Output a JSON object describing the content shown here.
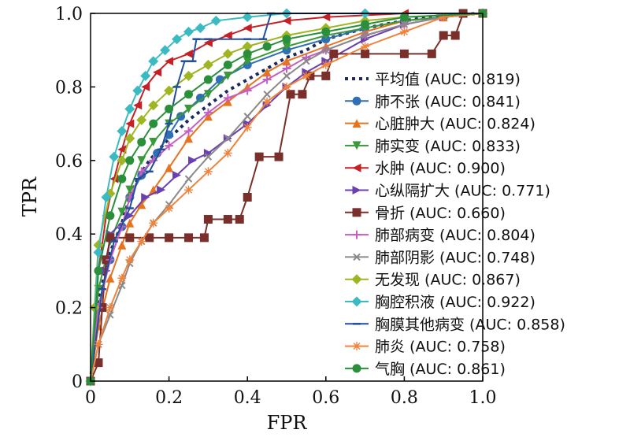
{
  "chart_data": {
    "type": "line",
    "title": "",
    "xlabel": "FPR",
    "ylabel": "TPR",
    "xlim": [
      0,
      1
    ],
    "ylim": [
      0,
      1
    ],
    "x_ticks": [
      "0",
      "0.2",
      "0.4",
      "0.6",
      "0.8",
      "1.0"
    ],
    "y_ticks": [
      "0",
      "0.2",
      "0.4",
      "0.6",
      "0.8",
      "1.0"
    ],
    "grid": false,
    "legend_position": "right",
    "series": [
      {
        "name": "平均值 (AUC: 0.819)",
        "color": "#1b2a5c",
        "marker": "none",
        "dash": true,
        "points": [
          [
            0,
            0
          ],
          [
            0.02,
            0.22
          ],
          [
            0.05,
            0.35
          ],
          [
            0.08,
            0.43
          ],
          [
            0.1,
            0.5
          ],
          [
            0.12,
            0.55
          ],
          [
            0.15,
            0.6
          ],
          [
            0.2,
            0.66
          ],
          [
            0.25,
            0.71
          ],
          [
            0.3,
            0.75
          ],
          [
            0.35,
            0.79
          ],
          [
            0.4,
            0.82
          ],
          [
            0.45,
            0.85
          ],
          [
            0.5,
            0.88
          ],
          [
            0.55,
            0.9
          ],
          [
            0.6,
            0.93
          ],
          [
            0.7,
            0.96
          ],
          [
            0.8,
            0.98
          ],
          [
            0.9,
            0.995
          ],
          [
            1,
            1
          ]
        ]
      },
      {
        "name": "肺不张 (AUC: 0.841)",
        "color": "#2e6fb5",
        "marker": "circle",
        "points": [
          [
            0,
            0
          ],
          [
            0.02,
            0.2
          ],
          [
            0.05,
            0.33
          ],
          [
            0.08,
            0.42
          ],
          [
            0.1,
            0.5
          ],
          [
            0.13,
            0.56
          ],
          [
            0.17,
            0.62
          ],
          [
            0.2,
            0.67
          ],
          [
            0.23,
            0.72
          ],
          [
            0.28,
            0.77
          ],
          [
            0.33,
            0.82
          ],
          [
            0.4,
            0.86
          ],
          [
            0.5,
            0.9
          ],
          [
            0.6,
            0.93
          ],
          [
            0.7,
            0.96
          ],
          [
            0.8,
            0.98
          ],
          [
            0.9,
            0.99
          ],
          [
            1,
            1
          ]
        ]
      },
      {
        "name": "心脏肿大 (AUC: 0.824)",
        "color": "#e8731f",
        "marker": "triangle-up",
        "points": [
          [
            0,
            0
          ],
          [
            0.02,
            0.15
          ],
          [
            0.05,
            0.28
          ],
          [
            0.08,
            0.37
          ],
          [
            0.1,
            0.43
          ],
          [
            0.13,
            0.48
          ],
          [
            0.16,
            0.52
          ],
          [
            0.2,
            0.58
          ],
          [
            0.25,
            0.66
          ],
          [
            0.3,
            0.72
          ],
          [
            0.35,
            0.76
          ],
          [
            0.4,
            0.8
          ],
          [
            0.45,
            0.84
          ],
          [
            0.5,
            0.87
          ],
          [
            0.6,
            0.91
          ],
          [
            0.7,
            0.95
          ],
          [
            0.8,
            0.98
          ],
          [
            0.9,
            0.99
          ],
          [
            1,
            1
          ]
        ]
      },
      {
        "name": "肺实变 (AUC: 0.833)",
        "color": "#3a9a3a",
        "marker": "triangle-down",
        "points": [
          [
            0,
            0
          ],
          [
            0.02,
            0.25
          ],
          [
            0.05,
            0.38
          ],
          [
            0.08,
            0.46
          ],
          [
            0.1,
            0.52
          ],
          [
            0.13,
            0.6
          ],
          [
            0.16,
            0.65
          ],
          [
            0.2,
            0.7
          ],
          [
            0.25,
            0.74
          ],
          [
            0.3,
            0.78
          ],
          [
            0.35,
            0.83
          ],
          [
            0.4,
            0.87
          ],
          [
            0.5,
            0.91
          ],
          [
            0.6,
            0.94
          ],
          [
            0.7,
            0.96
          ],
          [
            0.8,
            0.98
          ],
          [
            0.9,
            0.99
          ],
          [
            1,
            1
          ]
        ]
      },
      {
        "name": "水肿 (AUC: 0.900)",
        "color": "#c42026",
        "marker": "triangle-left",
        "points": [
          [
            0,
            0
          ],
          [
            0.02,
            0.3
          ],
          [
            0.04,
            0.45
          ],
          [
            0.06,
            0.55
          ],
          [
            0.08,
            0.63
          ],
          [
            0.1,
            0.7
          ],
          [
            0.12,
            0.75
          ],
          [
            0.14,
            0.8
          ],
          [
            0.17,
            0.84
          ],
          [
            0.2,
            0.87
          ],
          [
            0.25,
            0.89
          ],
          [
            0.3,
            0.92
          ],
          [
            0.35,
            0.94
          ],
          [
            0.4,
            0.96
          ],
          [
            0.5,
            0.98
          ],
          [
            0.6,
            0.99
          ],
          [
            0.8,
            1.0
          ],
          [
            1,
            1
          ]
        ]
      },
      {
        "name": "心纵隔扩大 (AUC: 0.771)",
        "color": "#6a3fb0",
        "marker": "triangle-right",
        "points": [
          [
            0,
            0
          ],
          [
            0.02,
            0.2
          ],
          [
            0.04,
            0.3
          ],
          [
            0.05,
            0.4
          ],
          [
            0.1,
            0.45
          ],
          [
            0.14,
            0.5
          ],
          [
            0.18,
            0.52
          ],
          [
            0.22,
            0.56
          ],
          [
            0.26,
            0.6
          ],
          [
            0.3,
            0.62
          ],
          [
            0.35,
            0.66
          ],
          [
            0.4,
            0.7
          ],
          [
            0.45,
            0.75
          ],
          [
            0.5,
            0.8
          ],
          [
            0.55,
            0.84
          ],
          [
            0.6,
            0.87
          ],
          [
            0.7,
            0.93
          ],
          [
            0.8,
            0.97
          ],
          [
            0.9,
            0.99
          ],
          [
            1,
            1
          ]
        ]
      },
      {
        "name": "骨折 (AUC: 0.660)",
        "color": "#7a2f2a",
        "marker": "square",
        "points": [
          [
            0,
            0
          ],
          [
            0.02,
            0.05
          ],
          [
            0.03,
            0.2
          ],
          [
            0.04,
            0.33
          ],
          [
            0.05,
            0.39
          ],
          [
            0.1,
            0.39
          ],
          [
            0.15,
            0.39
          ],
          [
            0.2,
            0.39
          ],
          [
            0.25,
            0.39
          ],
          [
            0.29,
            0.39
          ],
          [
            0.3,
            0.44
          ],
          [
            0.35,
            0.44
          ],
          [
            0.38,
            0.44
          ],
          [
            0.4,
            0.5
          ],
          [
            0.43,
            0.61
          ],
          [
            0.48,
            0.61
          ],
          [
            0.51,
            0.78
          ],
          [
            0.54,
            0.78
          ],
          [
            0.56,
            0.83
          ],
          [
            0.6,
            0.83
          ],
          [
            0.62,
            0.89
          ],
          [
            0.7,
            0.89
          ],
          [
            0.8,
            0.89
          ],
          [
            0.87,
            0.89
          ],
          [
            0.9,
            0.94
          ],
          [
            0.93,
            0.94
          ],
          [
            0.95,
            1.0
          ],
          [
            1,
            1
          ]
        ]
      },
      {
        "name": "肺部病变 (AUC: 0.804)",
        "color": "#c55ec2",
        "marker": "plus",
        "points": [
          [
            0,
            0
          ],
          [
            0.02,
            0.2
          ],
          [
            0.05,
            0.33
          ],
          [
            0.08,
            0.42
          ],
          [
            0.1,
            0.5
          ],
          [
            0.13,
            0.57
          ],
          [
            0.16,
            0.6
          ],
          [
            0.2,
            0.64
          ],
          [
            0.25,
            0.68
          ],
          [
            0.3,
            0.73
          ],
          [
            0.35,
            0.77
          ],
          [
            0.4,
            0.79
          ],
          [
            0.45,
            0.82
          ],
          [
            0.5,
            0.85
          ],
          [
            0.55,
            0.88
          ],
          [
            0.6,
            0.9
          ],
          [
            0.7,
            0.94
          ],
          [
            0.8,
            0.97
          ],
          [
            0.9,
            0.99
          ],
          [
            1,
            1
          ]
        ]
      },
      {
        "name": "肺部阴影 (AUC: 0.748)",
        "color": "#8a8a8a",
        "marker": "x",
        "points": [
          [
            0,
            0
          ],
          [
            0.02,
            0.1
          ],
          [
            0.05,
            0.18
          ],
          [
            0.08,
            0.26
          ],
          [
            0.1,
            0.32
          ],
          [
            0.13,
            0.38
          ],
          [
            0.16,
            0.43
          ],
          [
            0.2,
            0.48
          ],
          [
            0.25,
            0.55
          ],
          [
            0.3,
            0.61
          ],
          [
            0.35,
            0.66
          ],
          [
            0.4,
            0.72
          ],
          [
            0.45,
            0.78
          ],
          [
            0.5,
            0.83
          ],
          [
            0.55,
            0.87
          ],
          [
            0.6,
            0.9
          ],
          [
            0.7,
            0.94
          ],
          [
            0.8,
            0.97
          ],
          [
            0.9,
            0.99
          ],
          [
            1,
            1
          ]
        ]
      },
      {
        "name": "无发现 (AUC: 0.867)",
        "color": "#9fb523",
        "marker": "diamond",
        "points": [
          [
            0,
            0
          ],
          [
            0.01,
            0.2
          ],
          [
            0.02,
            0.37
          ],
          [
            0.05,
            0.51
          ],
          [
            0.08,
            0.6
          ],
          [
            0.1,
            0.66
          ],
          [
            0.13,
            0.71
          ],
          [
            0.16,
            0.75
          ],
          [
            0.2,
            0.79
          ],
          [
            0.25,
            0.83
          ],
          [
            0.3,
            0.86
          ],
          [
            0.35,
            0.89
          ],
          [
            0.4,
            0.91
          ],
          [
            0.5,
            0.94
          ],
          [
            0.6,
            0.96
          ],
          [
            0.7,
            0.98
          ],
          [
            0.8,
            0.99
          ],
          [
            1,
            1
          ]
        ]
      },
      {
        "name": "胸腔积液 (AUC: 0.922)",
        "color": "#3bbac2",
        "marker": "diamond",
        "points": [
          [
            0,
            0
          ],
          [
            0.02,
            0.35
          ],
          [
            0.04,
            0.5
          ],
          [
            0.06,
            0.61
          ],
          [
            0.08,
            0.68
          ],
          [
            0.1,
            0.74
          ],
          [
            0.12,
            0.79
          ],
          [
            0.14,
            0.83
          ],
          [
            0.16,
            0.87
          ],
          [
            0.19,
            0.9
          ],
          [
            0.22,
            0.93
          ],
          [
            0.25,
            0.95
          ],
          [
            0.28,
            0.96
          ],
          [
            0.32,
            0.98
          ],
          [
            0.4,
            0.99
          ],
          [
            0.5,
            1.0
          ],
          [
            0.7,
            1.0
          ],
          [
            1,
            1
          ]
        ]
      },
      {
        "name": "胸膜其他病变 (AUC: 0.858)",
        "color": "#234f99",
        "marker": "dash",
        "points": [
          [
            0,
            0
          ],
          [
            0.03,
            0.25
          ],
          [
            0.06,
            0.38
          ],
          [
            0.1,
            0.47
          ],
          [
            0.12,
            0.55
          ],
          [
            0.15,
            0.57
          ],
          [
            0.18,
            0.63
          ],
          [
            0.2,
            0.7
          ],
          [
            0.22,
            0.8
          ],
          [
            0.24,
            0.87
          ],
          [
            0.26,
            0.87
          ],
          [
            0.27,
            0.93
          ],
          [
            0.3,
            0.93
          ],
          [
            0.4,
            0.93
          ],
          [
            0.44,
            0.93
          ],
          [
            0.46,
            1.0
          ],
          [
            1,
            1
          ]
        ]
      },
      {
        "name": "肺炎 (AUC: 0.758)",
        "color": "#f0823c",
        "marker": "star",
        "points": [
          [
            0,
            0
          ],
          [
            0.02,
            0.1
          ],
          [
            0.05,
            0.2
          ],
          [
            0.08,
            0.28
          ],
          [
            0.1,
            0.33
          ],
          [
            0.13,
            0.38
          ],
          [
            0.16,
            0.43
          ],
          [
            0.2,
            0.47
          ],
          [
            0.25,
            0.52
          ],
          [
            0.3,
            0.57
          ],
          [
            0.35,
            0.62
          ],
          [
            0.4,
            0.69
          ],
          [
            0.45,
            0.76
          ],
          [
            0.5,
            0.8
          ],
          [
            0.55,
            0.83
          ],
          [
            0.6,
            0.86
          ],
          [
            0.7,
            0.91
          ],
          [
            0.8,
            0.95
          ],
          [
            0.9,
            0.99
          ],
          [
            1,
            1
          ]
        ]
      },
      {
        "name": "气胸 (AUC: 0.861)",
        "color": "#2a8f3a",
        "marker": "circle",
        "points": [
          [
            0,
            0
          ],
          [
            0.02,
            0.3
          ],
          [
            0.05,
            0.45
          ],
          [
            0.08,
            0.55
          ],
          [
            0.1,
            0.6
          ],
          [
            0.13,
            0.65
          ],
          [
            0.16,
            0.7
          ],
          [
            0.2,
            0.74
          ],
          [
            0.25,
            0.78
          ],
          [
            0.3,
            0.82
          ],
          [
            0.35,
            0.86
          ],
          [
            0.4,
            0.89
          ],
          [
            0.45,
            0.91
          ],
          [
            0.5,
            0.93
          ],
          [
            0.6,
            0.95
          ],
          [
            0.7,
            0.97
          ],
          [
            0.8,
            0.99
          ],
          [
            1,
            1
          ]
        ]
      }
    ]
  }
}
